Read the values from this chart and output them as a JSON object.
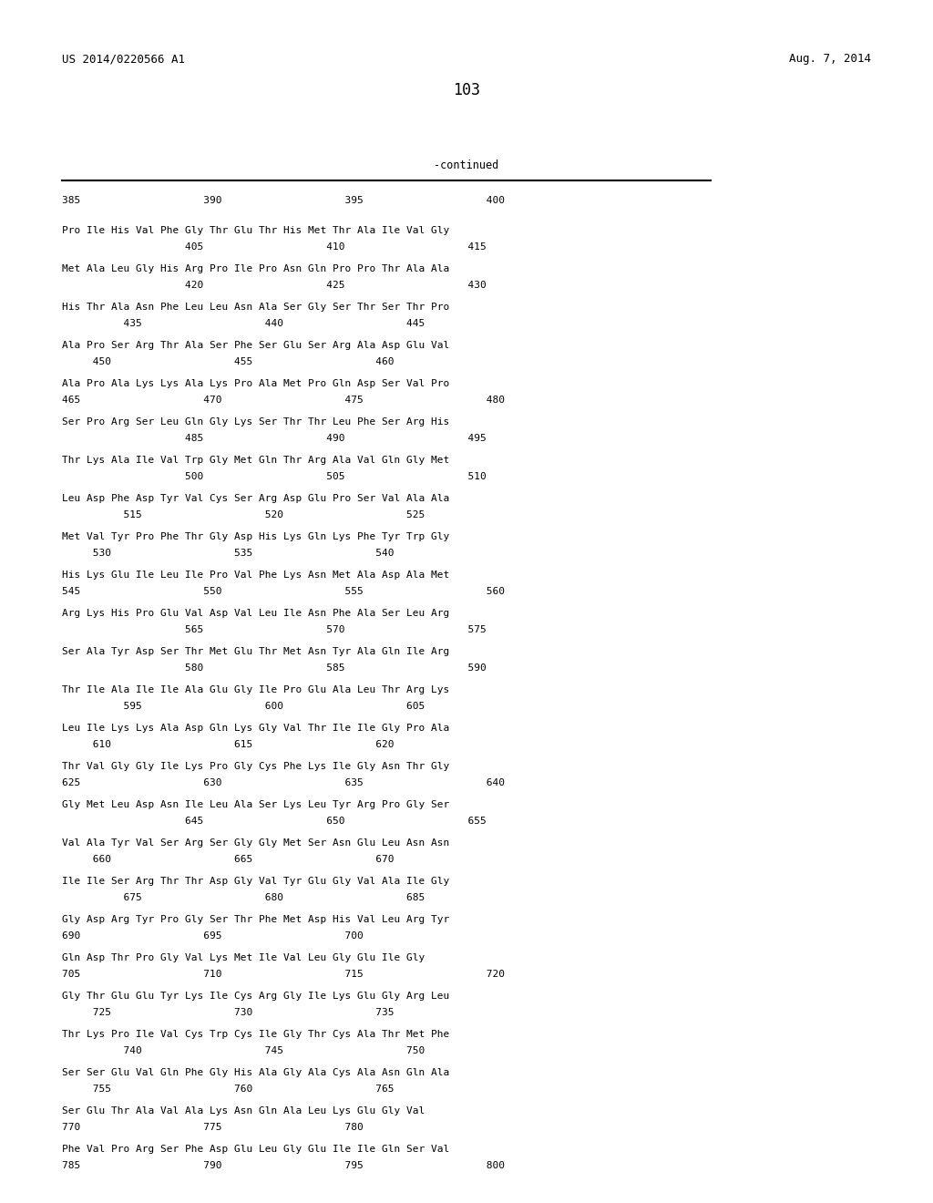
{
  "header_left": "US 2014/0220566 A1",
  "header_right": "Aug. 7, 2014",
  "page_number": "103",
  "continued_label": "-continued",
  "ruler": "385                    390                    395                    400",
  "blocks": [
    [
      "Pro Ile His Val Phe Gly Thr Glu Thr His Met Thr Ala Ile Val Gly",
      "                    405                    410                    415"
    ],
    [
      "Met Ala Leu Gly His Arg Pro Ile Pro Asn Gln Pro Pro Thr Ala Ala",
      "                    420                    425                    430"
    ],
    [
      "His Thr Ala Asn Phe Leu Leu Asn Ala Ser Gly Ser Thr Ser Thr Pro",
      "          435                    440                    445"
    ],
    [
      "Ala Pro Ser Arg Thr Ala Ser Phe Ser Glu Ser Arg Ala Asp Glu Val",
      "     450                    455                    460"
    ],
    [
      "Ala Pro Ala Lys Lys Ala Lys Pro Ala Met Pro Gln Asp Ser Val Pro",
      "465                    470                    475                    480"
    ],
    [
      "Ser Pro Arg Ser Leu Gln Gly Lys Ser Thr Thr Leu Phe Ser Arg His",
      "                    485                    490                    495"
    ],
    [
      "Thr Lys Ala Ile Val Trp Gly Met Gln Thr Arg Ala Val Gln Gly Met",
      "                    500                    505                    510"
    ],
    [
      "Leu Asp Phe Asp Tyr Val Cys Ser Arg Asp Glu Pro Ser Val Ala Ala",
      "          515                    520                    525"
    ],
    [
      "Met Val Tyr Pro Phe Thr Gly Asp His Lys Gln Lys Phe Tyr Trp Gly",
      "     530                    535                    540"
    ],
    [
      "His Lys Glu Ile Leu Ile Pro Val Phe Lys Asn Met Ala Asp Ala Met",
      "545                    550                    555                    560"
    ],
    [
      "Arg Lys His Pro Glu Val Asp Val Leu Ile Asn Phe Ala Ser Leu Arg",
      "                    565                    570                    575"
    ],
    [
      "Ser Ala Tyr Asp Ser Thr Met Glu Thr Met Asn Tyr Ala Gln Ile Arg",
      "                    580                    585                    590"
    ],
    [
      "Thr Ile Ala Ile Ile Ala Glu Gly Ile Pro Glu Ala Leu Thr Arg Lys",
      "          595                    600                    605"
    ],
    [
      "Leu Ile Lys Lys Ala Asp Gln Lys Gly Val Thr Ile Ile Gly Pro Ala",
      "     610                    615                    620"
    ],
    [
      "Thr Val Gly Gly Ile Lys Pro Gly Cys Phe Lys Ile Gly Asn Thr Gly",
      "625                    630                    635                    640"
    ],
    [
      "Gly Met Leu Asp Asn Ile Leu Ala Ser Lys Leu Tyr Arg Pro Gly Ser",
      "                    645                    650                    655"
    ],
    [
      "Val Ala Tyr Val Ser Arg Ser Gly Gly Met Ser Asn Glu Leu Asn Asn",
      "     660                    665                    670"
    ],
    [
      "Ile Ile Ser Arg Thr Thr Asp Gly Val Tyr Glu Gly Val Ala Ile Gly",
      "          675                    680                    685"
    ],
    [
      "Gly Asp Arg Tyr Pro Gly Ser Thr Phe Met Asp His Val Leu Arg Tyr",
      "690                    695                    700"
    ],
    [
      "Gln Asp Thr Pro Gly Val Lys Met Ile Val Leu Gly Glu Ile Gly",
      "705                    710                    715                    720"
    ],
    [
      "Gly Thr Glu Glu Tyr Lys Ile Cys Arg Gly Ile Lys Glu Gly Arg Leu",
      "     725                    730                    735"
    ],
    [
      "Thr Lys Pro Ile Val Cys Trp Cys Ile Gly Thr Cys Ala Thr Met Phe",
      "          740                    745                    750"
    ],
    [
      "Ser Ser Glu Val Gln Phe Gly His Ala Gly Ala Cys Ala Asn Gln Ala",
      "     755                    760                    765"
    ],
    [
      "Ser Glu Thr Ala Val Ala Lys Asn Gln Ala Leu Lys Glu Gly Val",
      "770                    775                    780"
    ],
    [
      "Phe Val Pro Arg Ser Phe Asp Glu Leu Gly Glu Ile Ile Gln Ser Val",
      "785                    790                    795                    800"
    ]
  ],
  "bg_color": "#ffffff",
  "text_color": "#000000"
}
